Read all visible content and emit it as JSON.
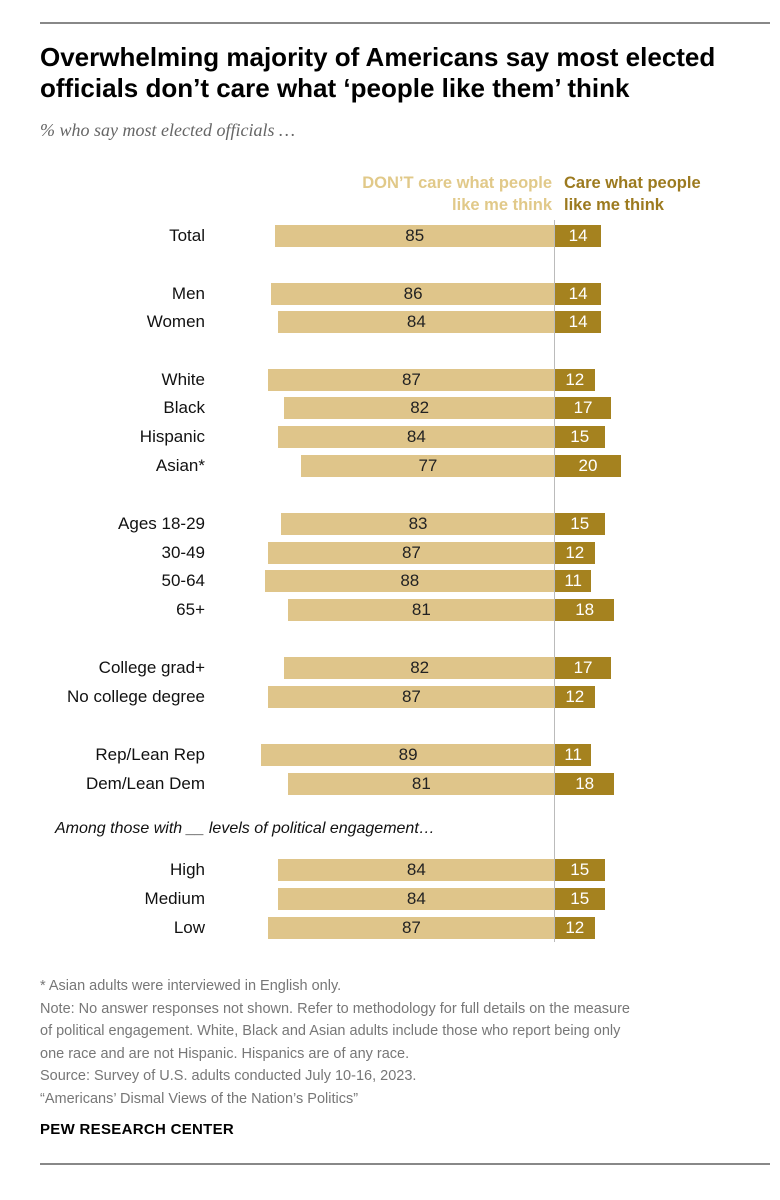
{
  "title": "Overwhelming majority of Americans say most elected officials don’t care what ‘people like them’ think",
  "subtitle": "% who say most elected officials …",
  "legend": {
    "left": [
      "DON’T care what people",
      "like me think"
    ],
    "right": [
      "Care what people",
      "like me think"
    ]
  },
  "colors": {
    "dont_care": "#dfc58a",
    "care": "#a5821f",
    "legend_left": "#e1c989",
    "legend_right": "#9c7a1f"
  },
  "group_note": "Among those with __ levels of political engagement…",
  "chart_data": {
    "type": "bar",
    "orientation": "horizontal-diverging",
    "categories": [
      "Total",
      "Men",
      "Women",
      "White",
      "Black",
      "Hispanic",
      "Asian*",
      "Ages 18-29",
      "30-49",
      "50-64",
      "65+",
      "College grad+",
      "No college degree",
      "Rep/Lean Rep",
      "Dem/Lean Dem",
      "High",
      "Medium",
      "Low"
    ],
    "series": [
      {
        "name": "DON’T care what people like me think",
        "values": [
          85,
          86,
          84,
          87,
          82,
          84,
          77,
          83,
          87,
          88,
          81,
          82,
          87,
          89,
          81,
          84,
          84,
          87
        ]
      },
      {
        "name": "Care what people like me think",
        "values": [
          14,
          14,
          14,
          12,
          17,
          15,
          20,
          15,
          12,
          11,
          18,
          17,
          12,
          11,
          18,
          15,
          15,
          12
        ]
      }
    ]
  },
  "notes": [
    "* Asian adults were interviewed in English only.",
    "Note: No answer responses not shown. Refer to methodology for full details on the measure",
    "of political engagement. White, Black and Asian adults include those who report being only",
    "one race and are not Hispanic. Hispanics are of any race.",
    "Source: Survey of U.S. adults conducted July 10-16, 2023.",
    "“Americans’ Dismal Views of the Nation’s Politics”"
  ],
  "source_org": "PEW RESEARCH CENTER"
}
